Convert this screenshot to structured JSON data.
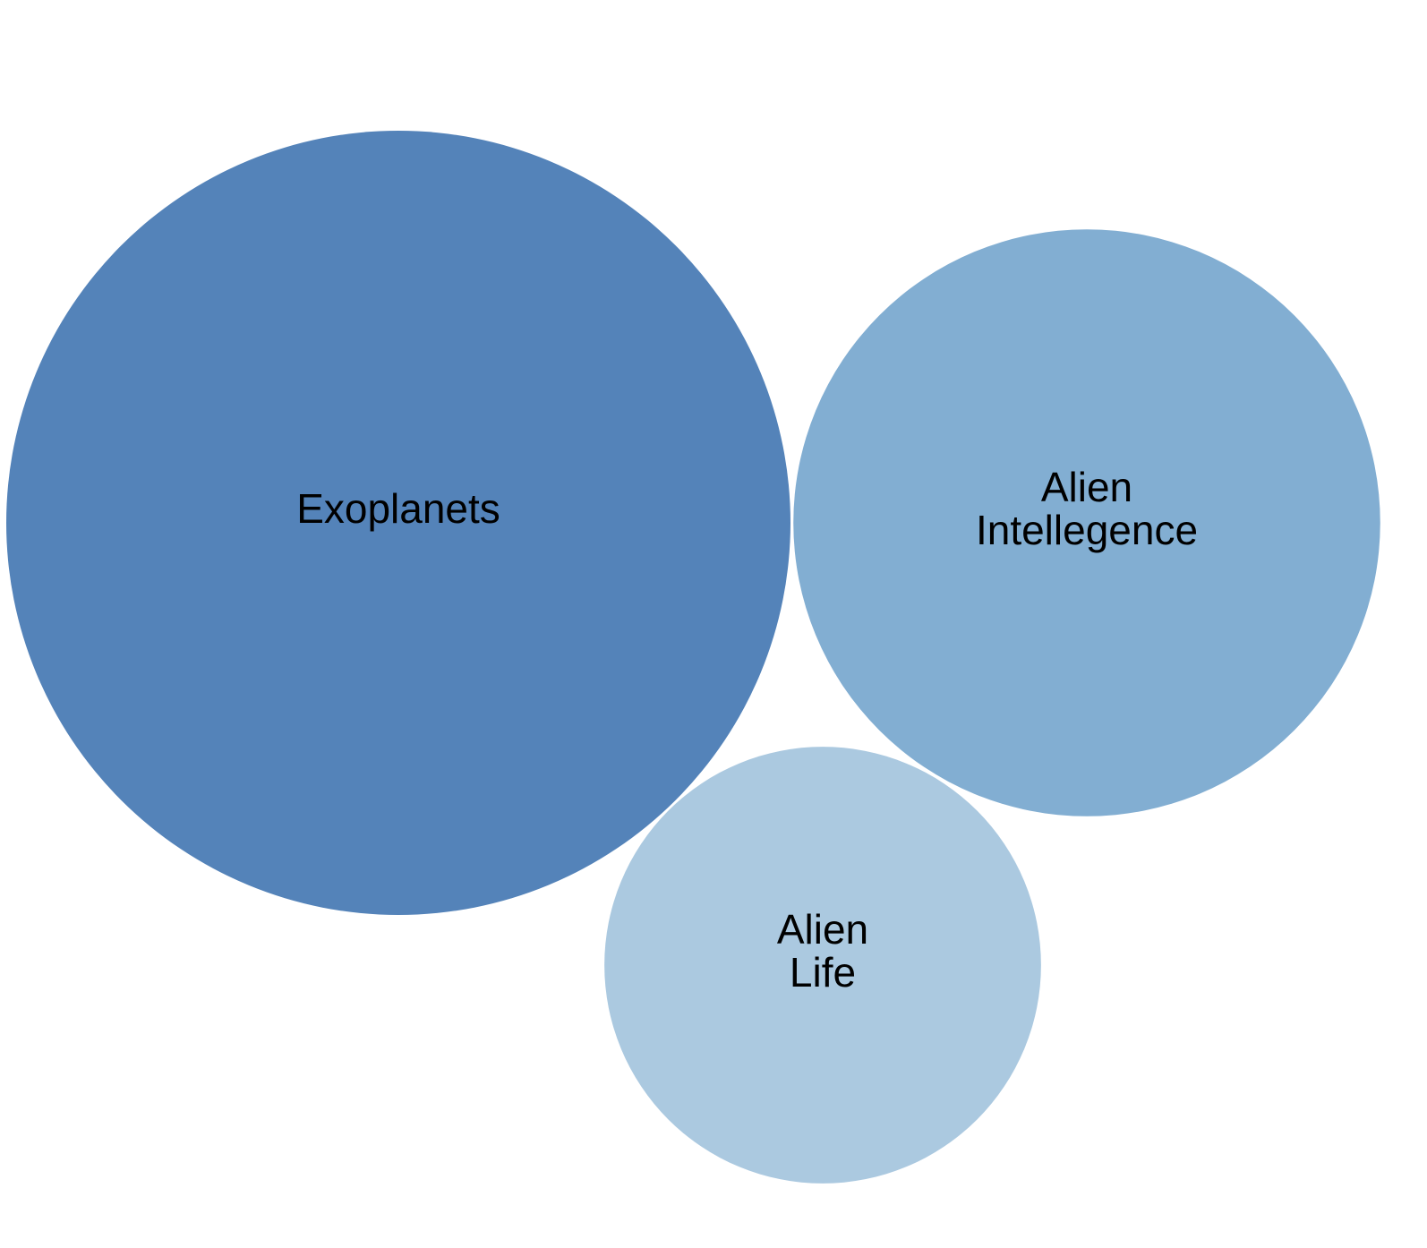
{
  "chart_data": {
    "type": "bubble",
    "series": [
      {
        "name": "Exoplanets",
        "label_lines": [
          "Exoplanets"
        ],
        "value": 100,
        "color": "#5483b9"
      },
      {
        "name": "Alien Intellegence",
        "label_lines": [
          "Alien",
          "Intellegence"
        ],
        "value": 56,
        "color": "#82aed2"
      },
      {
        "name": "Alien Life",
        "label_lines": [
          "Alien",
          "Life"
        ],
        "value": 31,
        "color": "#abc9e0"
      }
    ]
  }
}
